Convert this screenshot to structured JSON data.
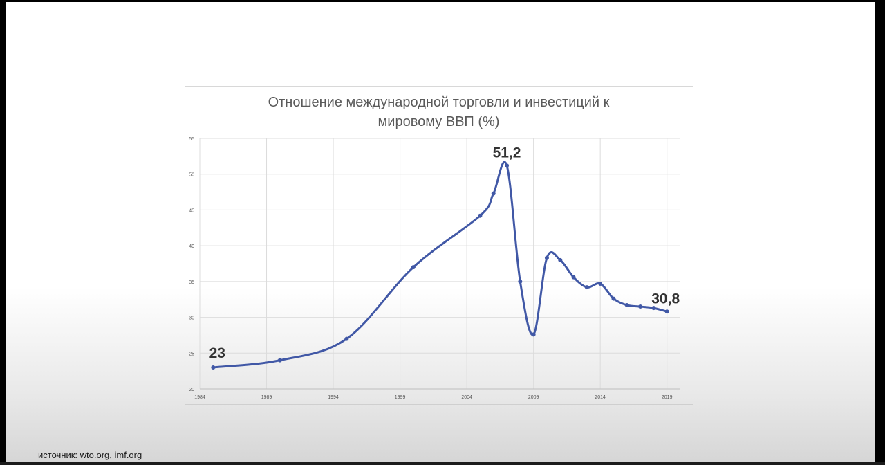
{
  "chart_data": {
    "type": "line",
    "title_lines": [
      "Отношение международной торговли и инвестиций к",
      "мировому ВВП (%)"
    ],
    "xlabel": "",
    "ylabel": "",
    "xlim": [
      1984,
      2020
    ],
    "ylim": [
      20,
      55
    ],
    "x_ticks": [
      1984,
      1989,
      1994,
      1999,
      2004,
      2009,
      2014,
      2019
    ],
    "y_ticks": [
      20,
      25,
      30,
      35,
      40,
      45,
      50,
      55
    ],
    "grid": true,
    "series": [
      {
        "color": "#4158a6",
        "x": [
          1985,
          1990,
          1995,
          2000,
          2005,
          2006,
          2007,
          2008,
          2009,
          2010,
          2011,
          2012,
          2013,
          2014,
          2015,
          2016,
          2017,
          2018,
          2019
        ],
        "y": [
          23.0,
          24.0,
          27.0,
          37.0,
          44.2,
          47.3,
          51.2,
          35.0,
          27.6,
          38.3,
          38.0,
          35.6,
          34.2,
          34.7,
          32.6,
          31.7,
          31.5,
          31.3,
          30.8
        ]
      }
    ],
    "annotations": [
      {
        "text": "23",
        "x": 1985,
        "y": 23.0
      },
      {
        "text": "51,2",
        "x": 2007,
        "y": 51.2
      },
      {
        "text": "30,8",
        "x": 2019,
        "y": 30.8
      }
    ]
  },
  "footer": {
    "source": "источник: wto.org, imf.org"
  }
}
